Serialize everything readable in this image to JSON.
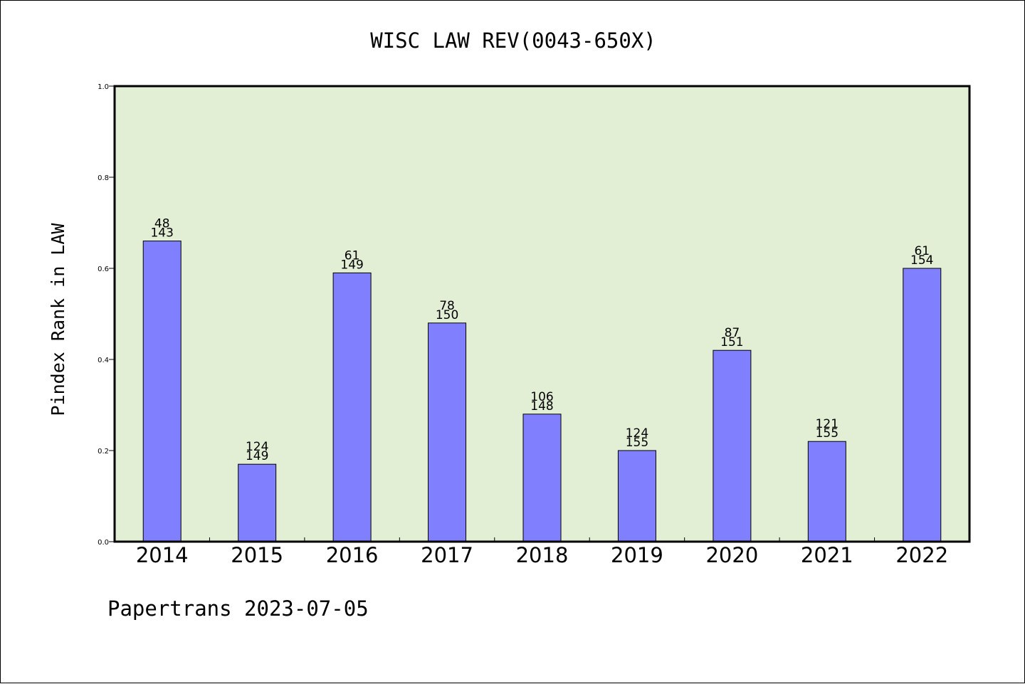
{
  "chart_data": {
    "type": "bar",
    "title": "WISC LAW REV(0043-650X)",
    "ylabel": "Pindex Rank in LAW",
    "xlabel": "",
    "ylim": [
      0,
      1.0
    ],
    "yticks": [
      "0.0",
      "0.2",
      "0.4",
      "0.6",
      "0.8",
      "1.0"
    ],
    "categories": [
      "2014",
      "2015",
      "2016",
      "2017",
      "2018",
      "2019",
      "2020",
      "2021",
      "2022"
    ],
    "values": [
      0.66,
      0.17,
      0.59,
      0.48,
      0.28,
      0.2,
      0.42,
      0.22,
      0.6
    ],
    "rank_labels": [
      "48",
      "124",
      "61",
      "78",
      "106",
      "124",
      "87",
      "121",
      "61"
    ],
    "total_labels": [
      "143",
      "149",
      "149",
      "150",
      "148",
      "155",
      "151",
      "155",
      "154"
    ],
    "colors": {
      "bar": "#8080ff",
      "plot_background": "#e2efd5"
    },
    "grid": false,
    "legend": "none"
  },
  "footer": "Papertrans 2023-07-05"
}
